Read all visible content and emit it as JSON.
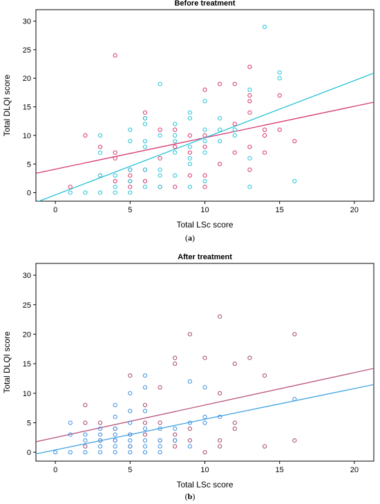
{
  "figure": {
    "panel_a_label": "a",
    "panel_b_label": "b"
  },
  "chart_data": [
    {
      "type": "scatter",
      "title": "Before treatment",
      "xlabel": "Total LSc score",
      "ylabel": "Total DLQI score",
      "xlim": [
        -1.3,
        21.3
      ],
      "ylim": [
        -1.5,
        32
      ],
      "xticks": [
        0,
        5,
        10,
        15,
        20
      ],
      "yticks": [
        0,
        5,
        10,
        15,
        20,
        25,
        30
      ],
      "grid": false,
      "series": [
        {
          "color": "#d6336c",
          "points": [
            [
              1,
              1
            ],
            [
              2,
              10
            ],
            [
              3,
              3
            ],
            [
              3,
              8
            ],
            [
              4,
              2
            ],
            [
              4,
              6
            ],
            [
              4,
              7
            ],
            [
              4,
              24
            ],
            [
              5,
              1
            ],
            [
              5,
              2
            ],
            [
              5,
              3
            ],
            [
              5,
              4
            ],
            [
              6,
              2
            ],
            [
              6,
              4
            ],
            [
              6,
              13
            ],
            [
              6,
              14
            ],
            [
              7,
              1
            ],
            [
              7,
              6
            ],
            [
              7,
              11
            ],
            [
              8,
              1
            ],
            [
              8,
              8
            ],
            [
              8,
              11
            ],
            [
              9,
              3
            ],
            [
              9,
              7
            ],
            [
              9,
              10
            ],
            [
              10,
              1
            ],
            [
              10,
              3
            ],
            [
              10,
              8
            ],
            [
              10,
              10
            ],
            [
              10,
              18
            ],
            [
              11,
              5
            ],
            [
              11,
              19
            ],
            [
              12,
              7
            ],
            [
              12,
              12
            ],
            [
              12,
              19
            ],
            [
              13,
              4
            ],
            [
              13,
              8
            ],
            [
              13,
              14
            ],
            [
              13,
              16
            ],
            [
              13,
              17
            ],
            [
              13,
              22
            ],
            [
              14,
              7
            ],
            [
              14,
              10
            ],
            [
              14,
              11
            ],
            [
              15,
              11
            ],
            [
              15,
              17
            ],
            [
              16,
              9
            ]
          ]
        },
        {
          "color": "#22c2d8",
          "points": [
            [
              1,
              0
            ],
            [
              2,
              0
            ],
            [
              3,
              0
            ],
            [
              3,
              3
            ],
            [
              3,
              7
            ],
            [
              3,
              10
            ],
            [
              4,
              0
            ],
            [
              4,
              1
            ],
            [
              4,
              3
            ],
            [
              5,
              0
            ],
            [
              5,
              2
            ],
            [
              5,
              4
            ],
            [
              5,
              9
            ],
            [
              5,
              11
            ],
            [
              6,
              1
            ],
            [
              6,
              4
            ],
            [
              6,
              8
            ],
            [
              6,
              9
            ],
            [
              6,
              12
            ],
            [
              6,
              13
            ],
            [
              7,
              1
            ],
            [
              7,
              3
            ],
            [
              7,
              4
            ],
            [
              7,
              10
            ],
            [
              7,
              19
            ],
            [
              8,
              3
            ],
            [
              8,
              7
            ],
            [
              8,
              9
            ],
            [
              8,
              10
            ],
            [
              8,
              12
            ],
            [
              9,
              1
            ],
            [
              9,
              5
            ],
            [
              9,
              6
            ],
            [
              9,
              8
            ],
            [
              9,
              13
            ],
            [
              9,
              14
            ],
            [
              10,
              2
            ],
            [
              10,
              7
            ],
            [
              10,
              9
            ],
            [
              10,
              11
            ],
            [
              10,
              16
            ],
            [
              11,
              9
            ],
            [
              11,
              11
            ],
            [
              11,
              13
            ],
            [
              12,
              10
            ],
            [
              12,
              11
            ],
            [
              13,
              1
            ],
            [
              13,
              6
            ],
            [
              13,
              18
            ],
            [
              14,
              29
            ],
            [
              15,
              20
            ],
            [
              15,
              21
            ],
            [
              16,
              2
            ]
          ]
        }
      ],
      "fit_lines": [
        {
          "color": "#d6336c",
          "intercept": 4.1,
          "slope": 0.55
        },
        {
          "color": "#22c2d8",
          "intercept": -0.4,
          "slope": 1.0
        }
      ]
    },
    {
      "type": "scatter",
      "title": "After treatment",
      "xlabel": "Total LSc score",
      "ylabel": "Total DLQI score",
      "xlim": [
        -1.3,
        21.3
      ],
      "ylim": [
        -1.5,
        32
      ],
      "xticks": [
        0,
        5,
        10,
        15,
        20
      ],
      "yticks": [
        0,
        5,
        10,
        15,
        20,
        25,
        30
      ],
      "grid": false,
      "series": [
        {
          "color": "#a3466e",
          "points": [
            [
              2,
              1
            ],
            [
              2,
              5
            ],
            [
              2,
              8
            ],
            [
              3,
              2
            ],
            [
              3,
              5
            ],
            [
              4,
              2
            ],
            [
              4,
              4
            ],
            [
              5,
              1
            ],
            [
              5,
              3
            ],
            [
              5,
              13
            ],
            [
              6,
              3
            ],
            [
              6,
              5
            ],
            [
              6,
              8
            ],
            [
              7,
              2
            ],
            [
              7,
              5
            ],
            [
              7,
              11
            ],
            [
              8,
              1
            ],
            [
              8,
              2
            ],
            [
              8,
              3
            ],
            [
              8,
              15
            ],
            [
              8,
              16
            ],
            [
              9,
              2
            ],
            [
              9,
              4
            ],
            [
              9,
              20
            ],
            [
              10,
              0
            ],
            [
              10,
              16
            ],
            [
              11,
              1
            ],
            [
              11,
              2
            ],
            [
              11,
              10
            ],
            [
              11,
              23
            ],
            [
              12,
              4
            ],
            [
              12,
              5
            ],
            [
              12,
              15
            ],
            [
              13,
              16
            ],
            [
              14,
              1
            ],
            [
              14,
              13
            ],
            [
              16,
              2
            ],
            [
              16,
              20
            ]
          ]
        },
        {
          "color": "#3a8fe0",
          "points": [
            [
              0,
              0
            ],
            [
              1,
              0
            ],
            [
              1,
              3
            ],
            [
              1,
              5
            ],
            [
              2,
              0
            ],
            [
              2,
              2
            ],
            [
              2,
              3
            ],
            [
              3,
              0
            ],
            [
              3,
              1
            ],
            [
              3,
              2
            ],
            [
              3,
              3
            ],
            [
              3,
              4
            ],
            [
              4,
              0
            ],
            [
              4,
              1
            ],
            [
              4,
              2
            ],
            [
              4,
              3
            ],
            [
              4,
              4
            ],
            [
              4,
              6
            ],
            [
              4,
              8
            ],
            [
              5,
              0
            ],
            [
              5,
              1
            ],
            [
              5,
              2
            ],
            [
              5,
              3
            ],
            [
              5,
              5
            ],
            [
              5,
              7
            ],
            [
              5,
              10
            ],
            [
              6,
              0
            ],
            [
              6,
              1
            ],
            [
              6,
              2
            ],
            [
              6,
              4
            ],
            [
              6,
              7
            ],
            [
              6,
              11
            ],
            [
              6,
              13
            ],
            [
              7,
              0
            ],
            [
              7,
              1
            ],
            [
              7,
              2
            ],
            [
              7,
              4
            ],
            [
              8,
              2
            ],
            [
              8,
              4
            ],
            [
              9,
              1
            ],
            [
              9,
              5
            ],
            [
              9,
              12
            ],
            [
              10,
              5
            ],
            [
              10,
              6
            ],
            [
              10,
              11
            ],
            [
              11,
              6
            ],
            [
              16,
              9
            ]
          ]
        }
      ],
      "fit_lines": [
        {
          "color": "#b8527e",
          "intercept": 2.5,
          "slope": 0.55
        },
        {
          "color": "#3fa3e0",
          "intercept": 0.4,
          "slope": 0.52
        }
      ]
    }
  ]
}
